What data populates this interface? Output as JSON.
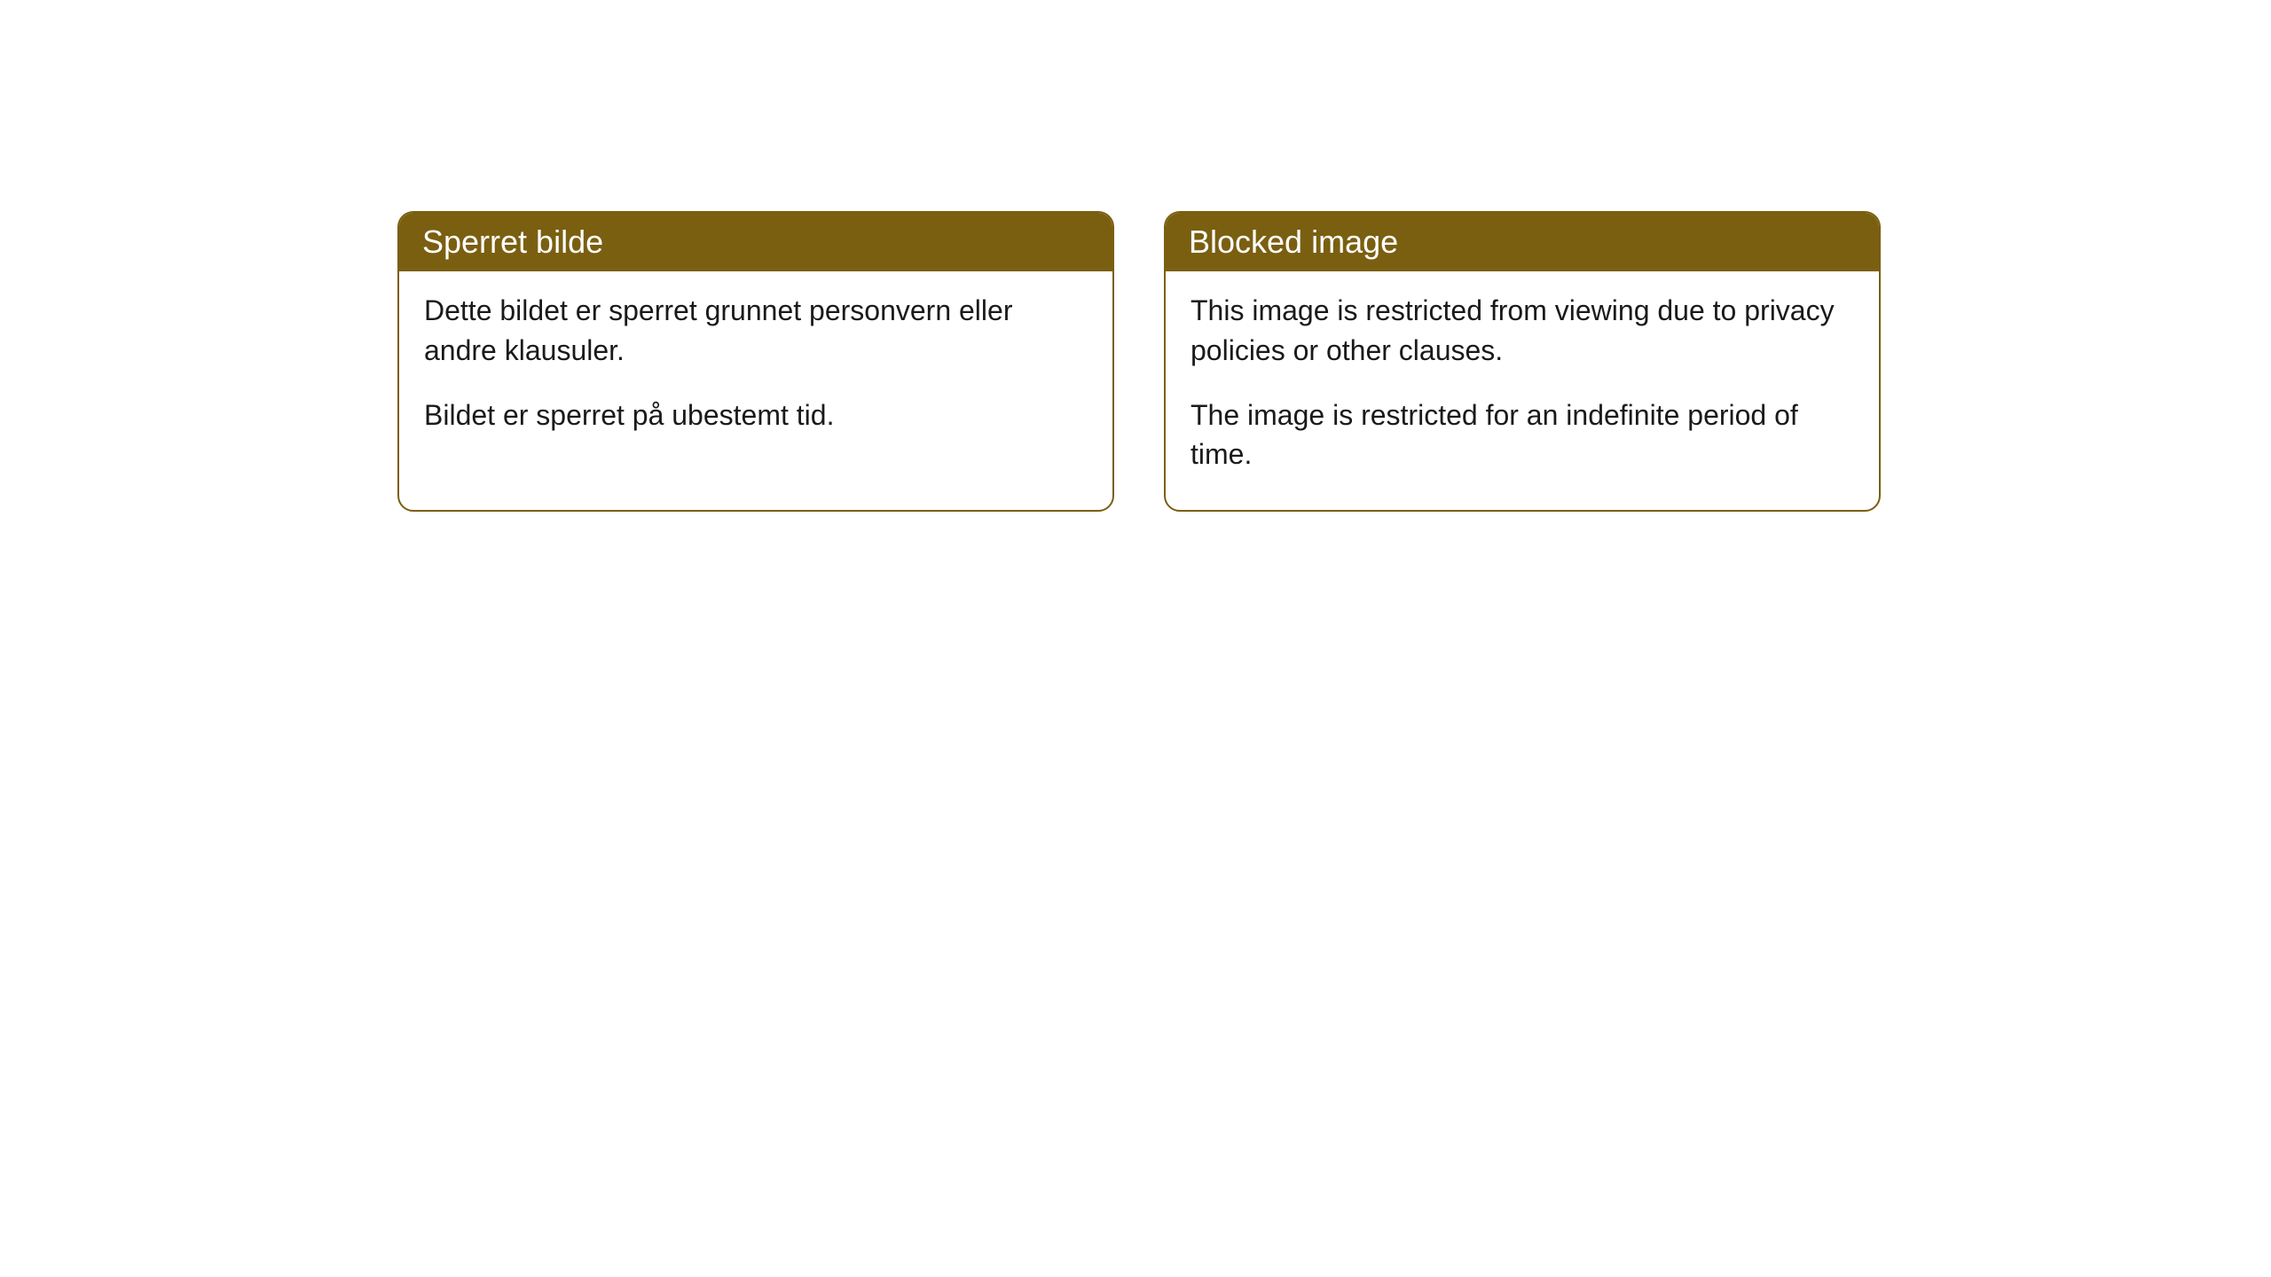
{
  "cards": [
    {
      "title": "Sperret bilde",
      "paragraph1": "Dette bildet er sperret grunnet personvern eller andre klausuler.",
      "paragraph2": "Bildet er sperret på ubestemt tid."
    },
    {
      "title": "Blocked image",
      "paragraph1": "This image is restricted from viewing due to privacy policies or other clauses.",
      "paragraph2": "The image is restricted for an indefinite period of time."
    }
  ],
  "style": {
    "header_bg": "#7a5f11",
    "header_text_color": "#ffffff",
    "border_color": "#7a5f11",
    "body_bg": "#ffffff",
    "body_text_color": "#1a1a1a",
    "border_radius": 18,
    "header_font_size": 36,
    "body_font_size": 32
  }
}
